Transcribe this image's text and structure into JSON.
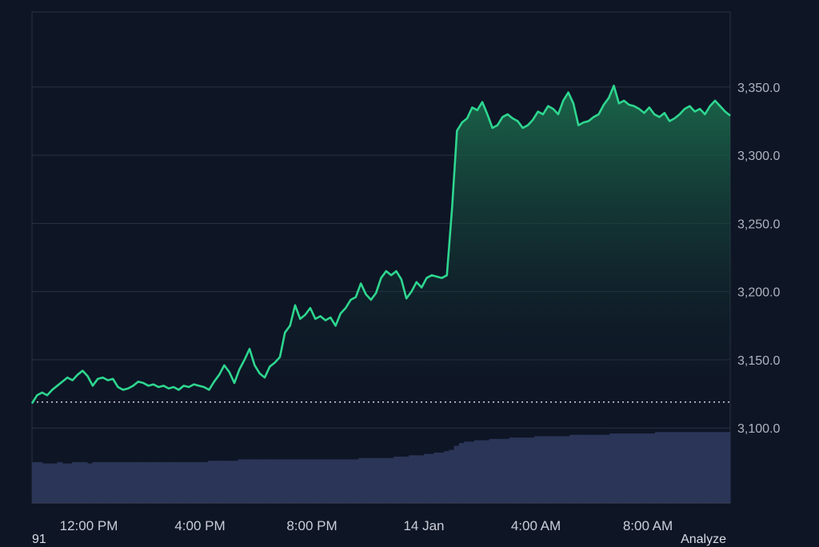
{
  "colors": {
    "background": "#0e1525",
    "grid": "#2a3344",
    "line": "#2ed68f",
    "area_top": "#1b6b4c",
    "volume": "#2a3557",
    "reference": "#cfd5df"
  },
  "footer": {
    "left_text": "91",
    "right_text": "Analyze"
  },
  "chart_data": {
    "type": "area",
    "y_ticks": [
      "3,100.0",
      "3,150.0",
      "3,200.0",
      "3,250.0",
      "3,300.0",
      "3,350.0"
    ],
    "x_ticks": [
      "12:00 PM",
      "4:00 PM",
      "8:00 PM",
      "14 Jan",
      "4:00 AM",
      "8:00 AM"
    ],
    "ylim": [
      3045,
      3405
    ],
    "reference_value": 3119,
    "grid": true,
    "series": [
      {
        "values": [
          3118,
          3124,
          3126,
          3124,
          3128,
          3131,
          3134,
          3137,
          3135,
          3139,
          3142,
          3138,
          3131,
          3136,
          3137,
          3135,
          3136,
          3130,
          3128,
          3129,
          3131,
          3134,
          3133,
          3131,
          3132,
          3130,
          3131,
          3129,
          3130,
          3128,
          3131,
          3130,
          3132,
          3131,
          3130,
          3128,
          3134,
          3139,
          3146,
          3141,
          3133,
          3143,
          3150,
          3158,
          3146,
          3140,
          3137,
          3145,
          3148,
          3152,
          3170,
          3175,
          3190,
          3180,
          3183,
          3188,
          3180,
          3182,
          3179,
          3181,
          3175,
          3184,
          3188,
          3194,
          3196,
          3206,
          3198,
          3194,
          3199,
          3210,
          3215,
          3212,
          3215,
          3209,
          3195,
          3200,
          3207,
          3203,
          3210,
          3212,
          3211,
          3210,
          3212,
          3260,
          3318,
          3324,
          3327,
          3335,
          3333,
          3339,
          3330,
          3320,
          3322,
          3328,
          3330,
          3327,
          3325,
          3320,
          3322,
          3326,
          3332,
          3330,
          3336,
          3334,
          3330,
          3340,
          3346,
          3338,
          3322,
          3324,
          3325,
          3328,
          3330,
          3337,
          3342,
          3351,
          3338,
          3340,
          3337,
          3336,
          3334,
          3331,
          3335,
          3330,
          3328,
          3331,
          3325,
          3327,
          3330,
          3334,
          3336,
          3332,
          3334,
          3330,
          3336,
          3340,
          3336,
          3332,
          3329
        ]
      }
    ],
    "volume": [
      3075,
      3075,
      3074,
      3074,
      3074,
      3075,
      3074,
      3074,
      3075,
      3075,
      3075,
      3074,
      3075,
      3075,
      3075,
      3075,
      3075,
      3075,
      3075,
      3075,
      3075,
      3075,
      3075,
      3075,
      3075,
      3075,
      3075,
      3075,
      3075,
      3075,
      3075,
      3075,
      3075,
      3075,
      3075,
      3076,
      3076,
      3076,
      3076,
      3076,
      3076,
      3077,
      3077,
      3077,
      3077,
      3077,
      3077,
      3077,
      3077,
      3077,
      3077,
      3077,
      3077,
      3077,
      3077,
      3077,
      3077,
      3077,
      3077,
      3077,
      3077,
      3077,
      3077,
      3077,
      3077,
      3078,
      3078,
      3078,
      3078,
      3078,
      3078,
      3078,
      3079,
      3079,
      3079,
      3080,
      3080,
      3080,
      3081,
      3081,
      3082,
      3082,
      3083,
      3084,
      3087,
      3089,
      3090,
      3090,
      3091,
      3091,
      3091,
      3092,
      3092,
      3092,
      3092,
      3093,
      3093,
      3093,
      3093,
      3093,
      3094,
      3094,
      3094,
      3094,
      3094,
      3094,
      3094,
      3095,
      3095,
      3095,
      3095,
      3095,
      3095,
      3095,
      3095,
      3096,
      3096,
      3096,
      3096,
      3096,
      3096,
      3096,
      3096,
      3096,
      3097,
      3097,
      3097,
      3097,
      3097,
      3097,
      3097,
      3097,
      3097,
      3097,
      3097,
      3097,
      3097,
      3097,
      3097
    ]
  }
}
